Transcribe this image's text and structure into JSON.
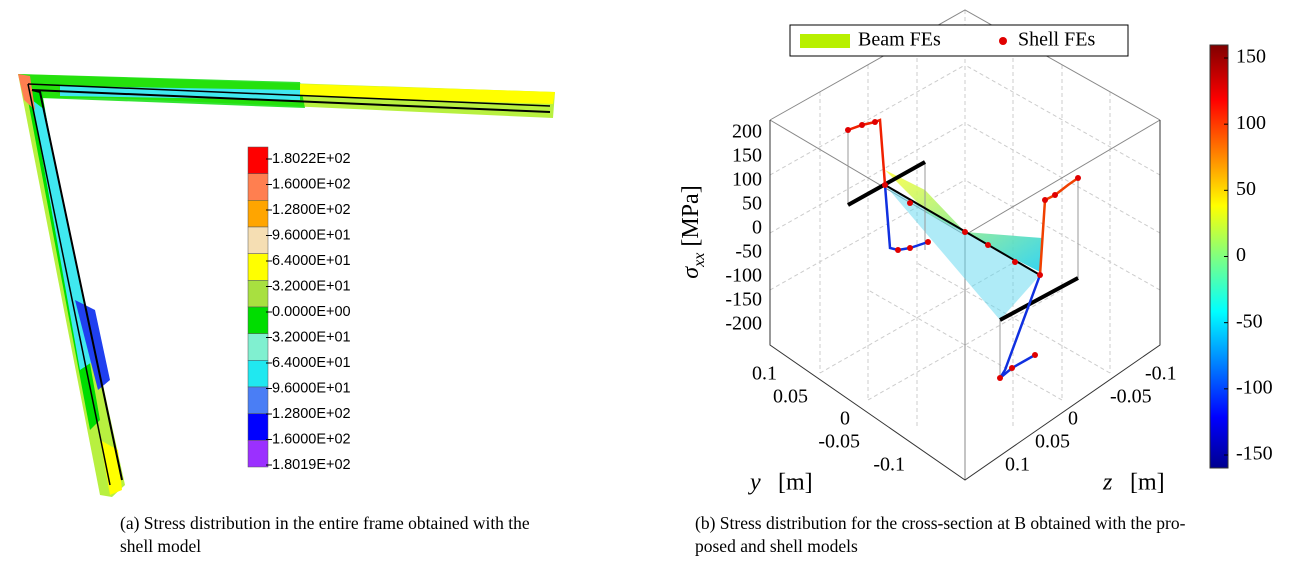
{
  "figure_a": {
    "legend_colors": [
      "#ff0000",
      "#ff7f50",
      "#ffa500",
      "#f5deb3",
      "#ffff00",
      "#a8e040",
      "#00dd00",
      "#80f0d0",
      "#20e8f0",
      "#4a7ef5",
      "#0000ff",
      "#9b30ff"
    ],
    "legend_labels": [
      "1.8022E+02",
      "1.6000E+02",
      "1.2800E+02",
      "9.6000E+01",
      "6.4000E+01",
      "3.2000E+01",
      "0.0000E+00",
      "3.2000E+01",
      "6.4000E+01",
      "9.6000E+01",
      "1.2800E+02",
      "1.6000E+02",
      "1.8019E+02"
    ],
    "caption": [
      "(a)  Stress distribution in the entire frame obtained with the",
      "shell model"
    ]
  },
  "figure_b": {
    "legend": {
      "beam": "Beam FEs",
      "shell": "Shell FEs"
    },
    "vertical_axis": {
      "symbol": "σ",
      "subscript": "xx",
      "unit": "[MPa]",
      "ticks": [
        "200",
        "150",
        "100",
        "50",
        "0",
        "-50",
        "-100",
        "-150",
        "-200"
      ]
    },
    "y_axis": {
      "symbol": "y",
      "unit": "[m]",
      "ticks": [
        "0.1",
        "0.05",
        "0",
        "-0.05",
        "-0.1"
      ]
    },
    "z_axis": {
      "symbol": "z",
      "unit": "[m]",
      "ticks": [
        "-0.1",
        "-0.05",
        "0",
        "0.05",
        "0.1"
      ]
    },
    "colorbar_ticks": [
      "150",
      "100",
      "50",
      "0",
      "-50",
      "-100",
      "-150"
    ],
    "caption": [
      "(b)  Stress distribution for the cross-section at B obtained with the pro-",
      "posed and shell models"
    ]
  }
}
